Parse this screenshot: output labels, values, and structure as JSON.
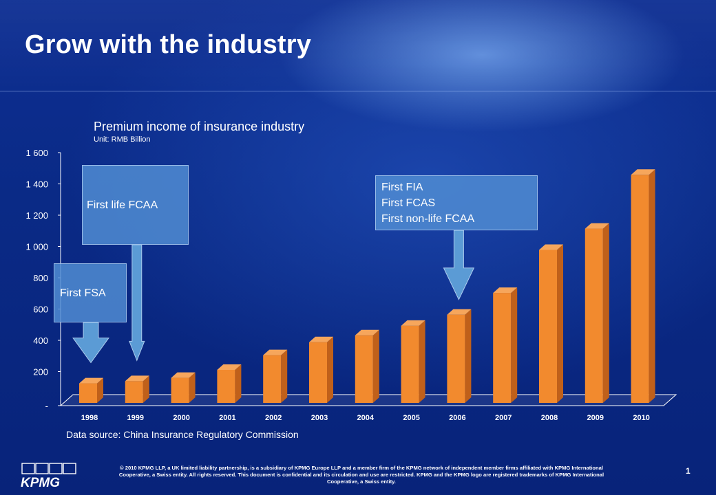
{
  "slide": {
    "title": "Grow with the industry",
    "source": "Data source: China Insurance Regulatory Commission",
    "footer": "© 2010 KPMG LLP, a UK limited liability partnership, is a subsidiary of KPMG Europe LLP and a member firm of the KPMG network of independent member firms affiliated with KPMG International Cooperative, a Swiss entity. All rights reserved. This document is confidential and its circulation and use are restricted.  KPMG and the KPMG logo are registered trademarks of KPMG International Cooperative, a Swiss entity.",
    "page_number": "1",
    "logo_text": "KPMG"
  },
  "callouts": [
    {
      "id": "fsa",
      "lines": [
        "First FSA"
      ],
      "category": "1998"
    },
    {
      "id": "life-fcaa",
      "lines": [
        "First life FCAA"
      ],
      "category": "1999"
    },
    {
      "id": "fia",
      "lines": [
        "First FIA",
        "First FCAS",
        "First non-life FCAA"
      ],
      "category": "2006"
    }
  ],
  "colors": {
    "bar_front": "#f28a2e",
    "bar_side": "#c0601a",
    "bar_top": "#f6a65c",
    "arrow": "#5b9bd5",
    "axis": "#ffffff"
  },
  "chart_data": {
    "type": "bar",
    "title": "Premium income of insurance industry",
    "subtitle": "Unit: RMB Billion",
    "categories": [
      "1998",
      "1999",
      "2000",
      "2001",
      "2002",
      "2003",
      "2004",
      "2005",
      "2006",
      "2007",
      "2008",
      "2009",
      "2010"
    ],
    "values": [
      125,
      139,
      160,
      211,
      305,
      388,
      432,
      493,
      564,
      703,
      978,
      1114,
      1458
    ],
    "yticks": [
      "-",
      "200",
      "400",
      "600",
      "800",
      "1 000",
      "1 200",
      "1 400",
      "1 600"
    ],
    "ylim": [
      0,
      1600
    ],
    "grid": false,
    "legend": "none"
  }
}
